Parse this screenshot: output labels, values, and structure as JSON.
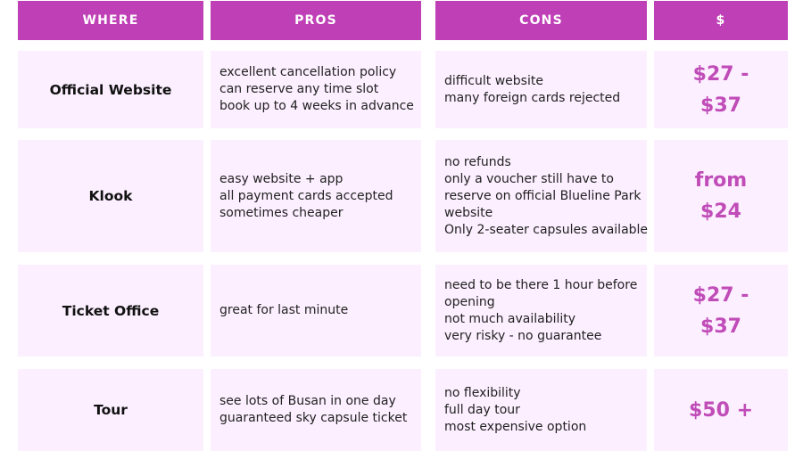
{
  "headers": {
    "where": "WHERE",
    "pros": "PROS",
    "cons": "CONS",
    "price": "$"
  },
  "rows": [
    {
      "where": "Official Website",
      "pros": [
        "excellent cancellation policy",
        "can reserve any time slot",
        "book up to 4 weeks in advance"
      ],
      "cons": [
        "difficult website",
        "many foreign cards rejected"
      ],
      "price": [
        "$27 -",
        "$37"
      ]
    },
    {
      "where": "Klook",
      "pros": [
        "easy website + app",
        "all payment cards accepted",
        "sometimes cheaper"
      ],
      "cons": [
        "no refunds",
        "only a voucher still have to",
        "reserve on official Blueline Park",
        "website",
        "Only 2-seater capsules available"
      ],
      "price": [
        "from",
        "$24"
      ]
    },
    {
      "where": "Ticket Office",
      "pros": [
        "great for last minute"
      ],
      "cons": [
        "need to be there 1 hour before",
        "opening",
        "not much availability",
        "very risky - no guarantee"
      ],
      "price": [
        "$27 -",
        "$37"
      ]
    },
    {
      "where": "Tour",
      "pros": [
        "see lots of Busan in one day",
        "guaranteed sky capsule ticket"
      ],
      "cons": [
        "no flexibility",
        "full day tour",
        "most expensive option"
      ],
      "price": [
        "$50 +"
      ]
    }
  ],
  "colors": {
    "header_bg": "#bf3fb6",
    "cell_bg": "#fcefff",
    "price_text": "#c04cb8"
  }
}
